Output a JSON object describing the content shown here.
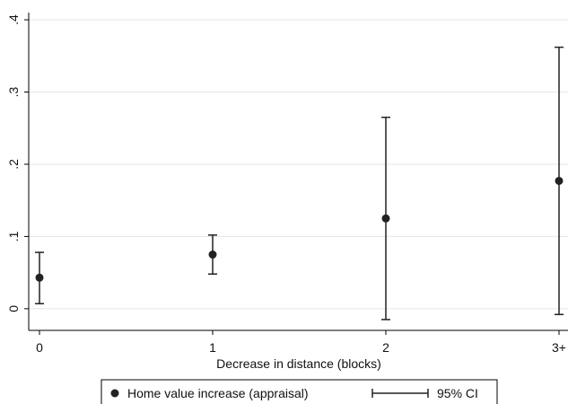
{
  "chart_data": {
    "type": "scatter",
    "xlabel": "Decrease in distance (blocks)",
    "ylabel": "",
    "categories": [
      "0",
      "1",
      "2",
      "3+"
    ],
    "ylim": [
      -0.03,
      0.41
    ],
    "yticks": [
      0,
      0.1,
      0.2,
      0.3,
      0.4
    ],
    "ytick_labels": [
      "0",
      ".1",
      ".2",
      ".3",
      ".4"
    ],
    "grid": "horizontal",
    "legend_position": "bottom",
    "series": [
      {
        "name": "Home value increase (appraisal)",
        "marker": "circle",
        "values": [
          0.043,
          0.075,
          0.125,
          0.177
        ],
        "ci_low": [
          0.007,
          0.048,
          -0.015,
          -0.008
        ],
        "ci_high": [
          0.078,
          0.102,
          0.265,
          0.362
        ]
      }
    ],
    "legend": [
      {
        "label": "Home value increase (appraisal)",
        "symbol": "dot"
      },
      {
        "label": "95% CI",
        "symbol": "capped-line"
      }
    ],
    "colors": {
      "marker": "#222222",
      "grid": "#e6e6e6",
      "axis": "#000000"
    }
  }
}
